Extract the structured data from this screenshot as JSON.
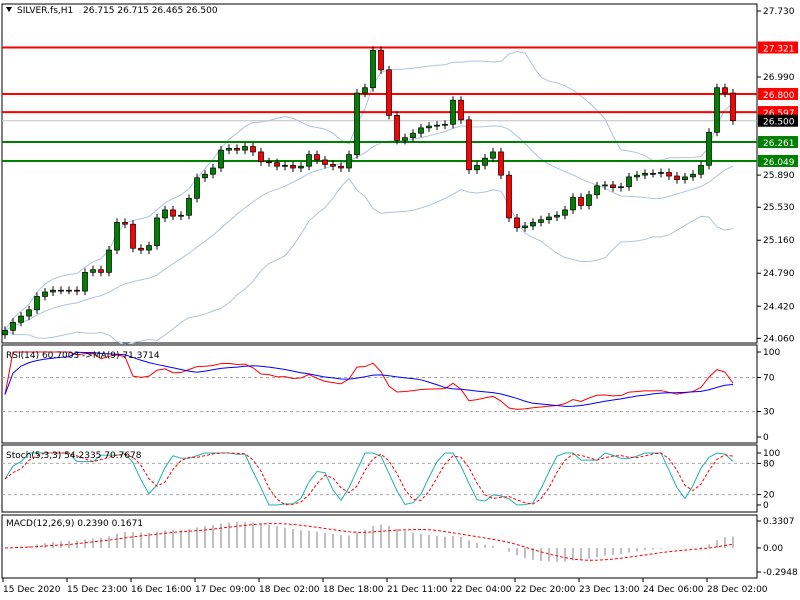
{
  "header": {
    "symbol_label": "SILVER.fs,H1",
    "ohlc": "26.715 26.715 26.465 26.500",
    "menu_icon": "triangle-down-icon"
  },
  "colors": {
    "bull_candle": "#008000",
    "bear_candle": "#ff0000",
    "bollinger": "#b0c4de",
    "resistance": "#ff0000",
    "support": "#008000",
    "rsi_line": "#ff0000",
    "rsi_ma_line": "#0000ff",
    "stoch_main": "#20b2aa",
    "stoch_signal": "#ff0000",
    "macd_hist": "#c0c0c0",
    "macd_signal": "#ff0000"
  },
  "chart_data": {
    "type": "candlestick",
    "symbol": "SILVER.fs",
    "timeframe": "H1",
    "close": [
      24.15,
      24.24,
      24.31,
      24.38,
      24.53,
      24.58,
      24.6,
      24.6,
      24.6,
      24.59,
      24.8,
      24.83,
      24.8,
      25.05,
      25.36,
      25.34,
      25.07,
      25.05,
      25.1,
      25.41,
      25.5,
      25.43,
      25.44,
      25.63,
      25.86,
      25.9,
      25.97,
      26.17,
      26.19,
      26.17,
      26.21,
      26.15,
      26.04,
      26.03,
      25.99,
      26.0,
      25.97,
      25.99,
      26.12,
      26.06,
      26.01,
      25.99,
      25.97,
      26.12,
      26.81,
      26.87,
      27.29,
      27.07,
      26.56,
      26.28,
      26.31,
      26.36,
      26.42,
      26.44,
      26.45,
      26.46,
      26.73,
      26.51,
      25.95,
      26.0,
      26.08,
      26.15,
      25.89,
      25.41,
      25.3,
      25.32,
      25.36,
      25.39,
      25.42,
      25.44,
      25.5,
      25.64,
      25.55,
      25.67,
      25.77,
      25.78,
      25.75,
      25.76,
      25.87,
      25.89,
      25.91,
      25.91,
      25.92,
      25.88,
      25.84,
      25.87,
      25.9,
      26.0,
      26.37,
      26.87,
      26.81,
      26.5
    ],
    "first_open": 24.1,
    "ylim": [
      24.06,
      27.73
    ],
    "price_ticks": [
      "27.730",
      "26.990",
      "25.890",
      "25.530",
      "25.160",
      "24.790",
      "24.420",
      "24.060"
    ],
    "time_ticks": [
      "15 Dec 2020",
      "15 Dec 23:00",
      "16 Dec 16:00",
      "17 Dec 09:00",
      "18 Dec 02:00",
      "18 Dec 18:00",
      "21 Dec 11:00",
      "22 Dec 04:00",
      "22 Dec 20:00",
      "23 Dec 13:00",
      "24 Dec 06:00",
      "28 Dec 02:00"
    ],
    "levels": [
      {
        "price": 27.321,
        "label": "27.321",
        "kind": "resistance"
      },
      {
        "price": 26.8,
        "label": "26.800",
        "kind": "resistance"
      },
      {
        "price": 26.597,
        "label": "26.597",
        "kind": "resistance"
      },
      {
        "price": 26.261,
        "label": "26.261",
        "kind": "support"
      },
      {
        "price": 26.049,
        "label": "26.049",
        "kind": "support"
      }
    ],
    "current_price": {
      "price": 26.5,
      "label": "26.500"
    },
    "bollinger": {
      "period": 20,
      "deviation": 2
    },
    "indicators": {
      "rsi": {
        "label": "RSI(14) 60.7003  ->MA(9) 71.3714",
        "period": 14,
        "ma_period": 9,
        "levels": [
          70,
          30
        ],
        "ticks": [
          "100",
          "70",
          "30",
          "0"
        ]
      },
      "stoch": {
        "label": "Stoch(5,3,3) 54.2335 70.7678",
        "k": 5,
        "d": 3,
        "slowing": 3,
        "levels": [
          80,
          20
        ],
        "ticks": [
          "100",
          "80",
          "20",
          "0"
        ]
      },
      "macd": {
        "label": "MACD(12,26,9) 0.2390 0.1671",
        "fast": 12,
        "slow": 26,
        "signal": 9,
        "ticks": [
          "0.3307",
          "0.00",
          "-0.2948"
        ],
        "range": [
          -0.2948,
          0.3307
        ]
      }
    }
  }
}
